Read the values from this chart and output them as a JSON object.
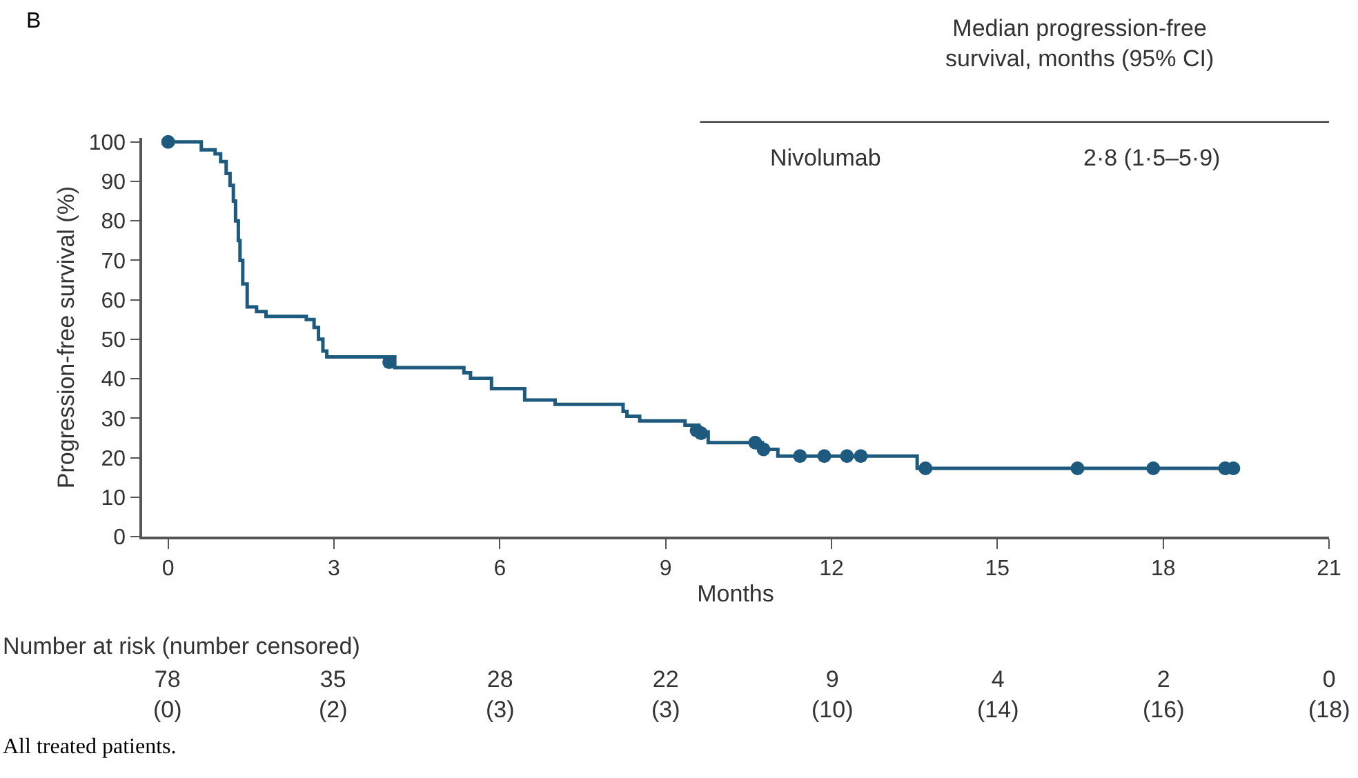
{
  "chart_data": {
    "type": "step",
    "xlabel": "Months",
    "ylabel": "Progression-free survival (%)",
    "xlim": [
      -0.47,
      21
    ],
    "xticks": [
      0,
      3,
      6,
      9,
      12,
      15,
      18,
      21
    ],
    "ylim": [
      0,
      101
    ],
    "yticks": [
      0,
      10,
      20,
      30,
      40,
      50,
      60,
      70,
      80,
      90,
      100
    ],
    "line_style": "solid",
    "series": [
      {
        "color": "#1d5a7e",
        "x": [
          0,
          0.6,
          0.85,
          0.95,
          1.05,
          1.12,
          1.18,
          1.22,
          1.27,
          1.3,
          1.35,
          1.43,
          1.6,
          1.77,
          2.5,
          2.64,
          2.72,
          2.8,
          2.87,
          4.1,
          5.35,
          5.47,
          5.85,
          6.45,
          7.0,
          8.23,
          8.3,
          8.53,
          9.35,
          9.6,
          9.77,
          10.75,
          11.03,
          13.55,
          19.3
        ],
        "values": [
          100,
          98,
          97,
          95,
          92,
          89,
          85,
          80,
          75,
          70,
          64,
          58.2,
          57,
          55.8,
          55,
          53,
          50,
          47,
          45.5,
          42.8,
          41.5,
          40.1,
          37.5,
          34.6,
          33.5,
          31.7,
          30.5,
          29.3,
          28.2,
          26.5,
          23.8,
          22.1,
          20.4,
          17.3,
          17.3
        ]
      },
      {
        "type": "scatter",
        "marker": "circle",
        "color": "#1d5a7e",
        "x": [
          0,
          4.0,
          9.56,
          9.64,
          10.62,
          10.77,
          11.43,
          11.87,
          12.28,
          12.53,
          13.7,
          16.45,
          17.82,
          19.12,
          19.27
        ],
        "values": [
          100,
          44.2,
          26.9,
          26.2,
          23.8,
          22.1,
          20.4,
          20.4,
          20.4,
          20.4,
          17.3,
          17.3,
          17.3,
          17.3,
          17.3
        ]
      }
    ],
    "annotations": [
      "B",
      "Median progression-free\nsurvival, months (95% CI)",
      "Nivolumab",
      "2·8 (1·5–5·9)",
      "Number at risk (number censored)",
      "78\n(0)",
      "35\n(2)",
      "28\n(3)",
      "22\n(3)",
      "9\n(10)",
      "4\n(14)",
      "2\n(16)",
      "0\n(18)",
      "All treated patients."
    ]
  }
}
